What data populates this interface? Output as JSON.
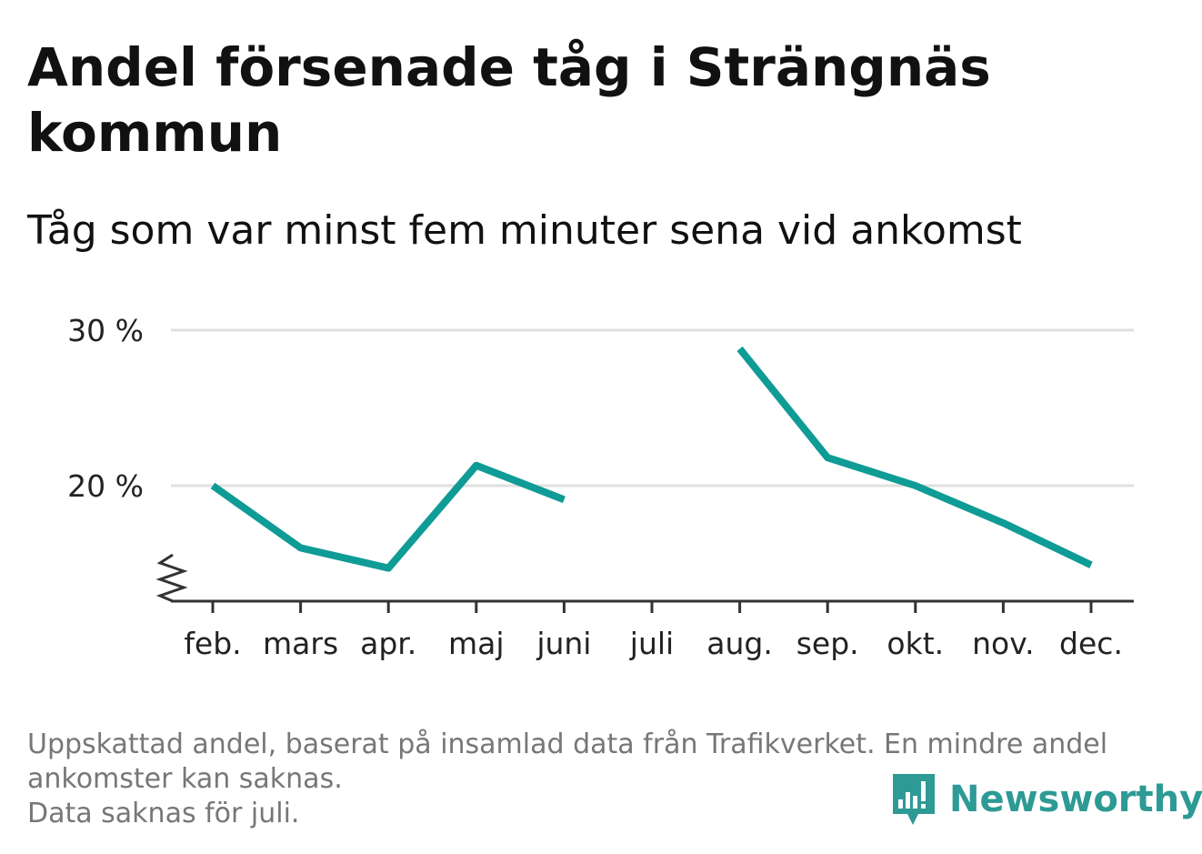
{
  "title": "Andel försenade tåg i Strängnäs kommun",
  "subtitle": "Tåg som var minst fem minuter sena vid ankomst",
  "footer": {
    "line1": "Uppskattad andel, baserat på insamlad data från Trafikverket. En mindre andel",
    "line2": "ankomster kan saknas.",
    "line3": "Data saknas för juli."
  },
  "brand": {
    "name": "Newsworthy",
    "icon": "newsworthy-logo-icon"
  },
  "colors": {
    "line": "#0f9b96",
    "grid": "#e0e0e0",
    "axis": "#333333",
    "text": "#222222",
    "brand": "#2d9a95"
  },
  "chart_data": {
    "type": "line",
    "title": "Andel försenade tåg i Strängnäs kommun",
    "subtitle": "Tåg som var minst fem minuter sena vid ankomst",
    "categories": [
      "feb.",
      "mars",
      "apr.",
      "maj",
      "juni",
      "juli",
      "aug.",
      "sep.",
      "okt.",
      "nov.",
      "dec."
    ],
    "series": [
      {
        "values": [
          20.0,
          16.0,
          14.7,
          21.3,
          19.1,
          null,
          28.8,
          21.8,
          20.0,
          17.6,
          14.9
        ]
      }
    ],
    "yticks": [
      20,
      30
    ],
    "ytick_labels": [
      "20 %",
      "30 %"
    ],
    "ylim": [
      12.5,
      30
    ],
    "broken_y_axis": true,
    "grid": true,
    "legend": "none"
  }
}
